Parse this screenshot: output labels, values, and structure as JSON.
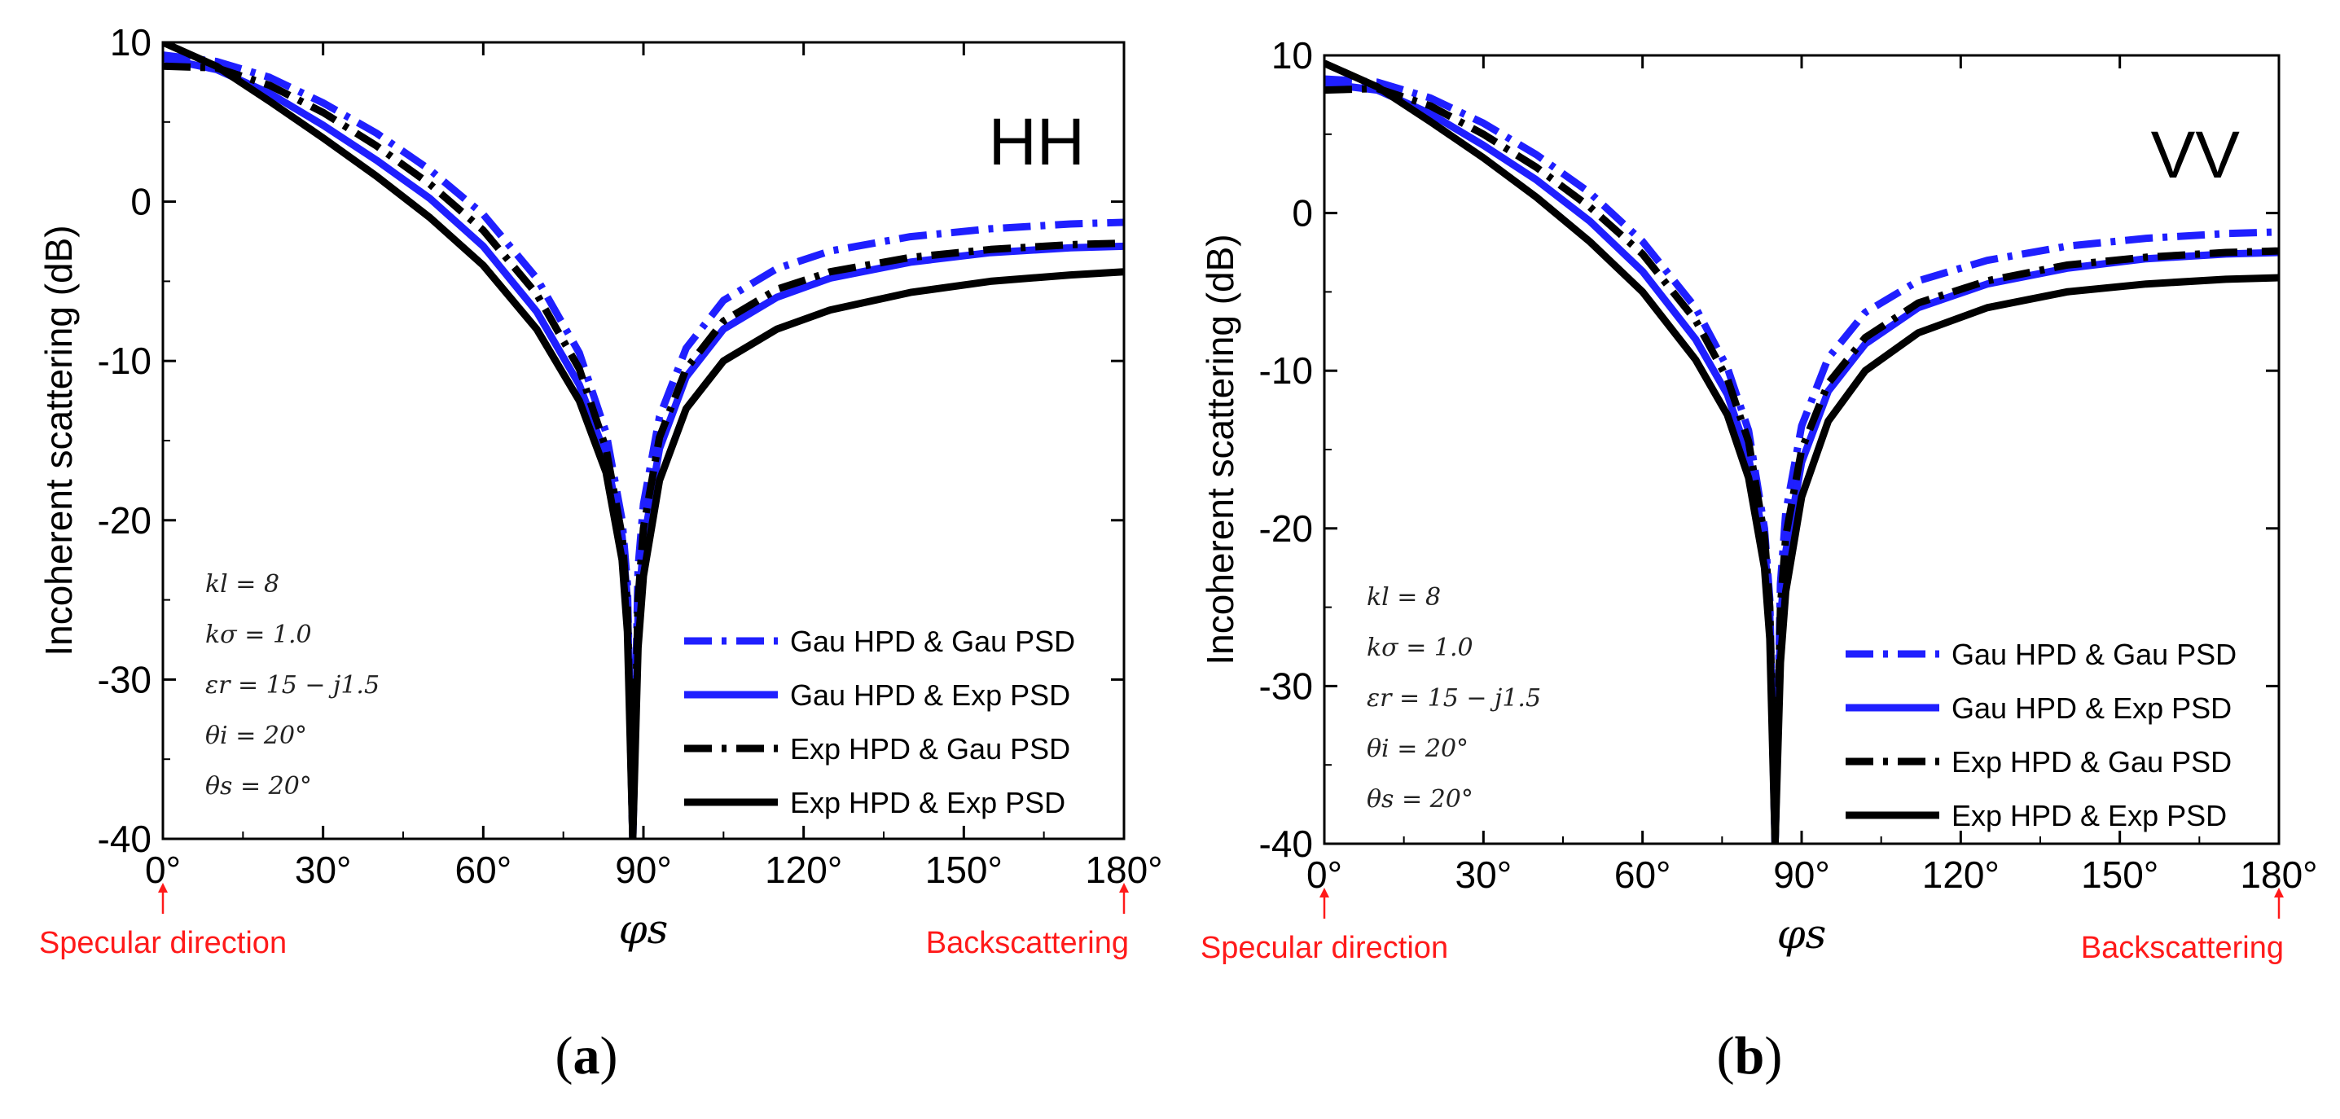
{
  "chart_data": [
    {
      "type": "line",
      "panel_tag": "HH",
      "caption_open": "(",
      "caption_letter": "a",
      "caption_close": ")",
      "ylabel": "Incoherent scattering (dB)",
      "xlabel": "φs",
      "xlim": [
        0,
        180
      ],
      "ylim": [
        -40,
        10
      ],
      "x_ticks": [
        "0°",
        "30°",
        "60°",
        "90°",
        "120°",
        "150°",
        "180°"
      ],
      "y_ticks": [
        "10",
        "0",
        "-10",
        "-20",
        "-30",
        "-40"
      ],
      "notch_deg": 88,
      "parameters": [
        "kl = 8",
        "kσ = 1.0",
        "εr = 15 − j1.5",
        "θi = 20°",
        "θs = 20°"
      ],
      "annotations": [
        {
          "text": "Specular direction",
          "x": 0
        },
        {
          "text": "Backscattering",
          "x": 180
        }
      ],
      "legend_location": "lower-right",
      "series": [
        {
          "name": "Gau HPD & Gau PSD",
          "color": "#1f1fff",
          "dash": "dashdot",
          "x": [
            0,
            10,
            20,
            30,
            40,
            50,
            60,
            70,
            78,
            83,
            86,
            87,
            88,
            89,
            90,
            93,
            98,
            105,
            115,
            125,
            140,
            155,
            170,
            180
          ],
          "y": [
            9.2,
            8.8,
            7.8,
            6.2,
            4.3,
            2.0,
            -0.8,
            -4.8,
            -9.5,
            -14.5,
            -20.0,
            -24.0,
            -40.0,
            -23.0,
            -19.0,
            -13.5,
            -9.2,
            -6.2,
            -4.2,
            -3.1,
            -2.2,
            -1.7,
            -1.4,
            -1.3
          ]
        },
        {
          "name": "Gau HPD & Exp PSD",
          "color": "#1f1fff",
          "dash": "solid",
          "x": [
            0,
            10,
            20,
            30,
            40,
            50,
            60,
            70,
            78,
            83,
            86,
            87,
            88,
            89,
            90,
            93,
            98,
            105,
            115,
            125,
            140,
            155,
            170,
            180
          ],
          "y": [
            9.0,
            8.3,
            6.8,
            4.8,
            2.6,
            0.2,
            -2.8,
            -6.9,
            -11.5,
            -16.0,
            -21.0,
            -25.0,
            -40.0,
            -26.0,
            -21.5,
            -15.5,
            -11.0,
            -8.0,
            -6.0,
            -4.8,
            -3.8,
            -3.2,
            -2.9,
            -2.8
          ]
        },
        {
          "name": "Exp HPD & Gau PSD",
          "color": "#000000",
          "dash": "dashdot",
          "x": [
            0,
            10,
            20,
            30,
            40,
            50,
            60,
            70,
            78,
            83,
            86,
            87,
            88,
            89,
            90,
            93,
            98,
            105,
            115,
            125,
            140,
            155,
            170,
            180
          ],
          "y": [
            8.5,
            8.4,
            7.3,
            5.6,
            3.5,
            1.1,
            -1.8,
            -5.8,
            -10.5,
            -15.5,
            -21.0,
            -25.5,
            -40.0,
            -25.0,
            -20.5,
            -14.8,
            -10.5,
            -7.5,
            -5.5,
            -4.4,
            -3.5,
            -3.0,
            -2.7,
            -2.6
          ]
        },
        {
          "name": "Exp HPD & Exp PSD",
          "color": "#000000",
          "dash": "solid",
          "x": [
            0,
            10,
            20,
            30,
            40,
            50,
            60,
            70,
            78,
            83,
            86,
            87,
            88,
            89,
            90,
            93,
            98,
            105,
            115,
            125,
            140,
            155,
            170,
            180
          ],
          "y": [
            10.0,
            8.5,
            6.3,
            4.0,
            1.6,
            -1.0,
            -4.0,
            -8.0,
            -12.5,
            -17.0,
            -22.5,
            -27.0,
            -40.0,
            -28.0,
            -23.5,
            -17.5,
            -13.0,
            -10.0,
            -8.0,
            -6.8,
            -5.7,
            -5.0,
            -4.6,
            -4.4
          ]
        }
      ]
    },
    {
      "type": "line",
      "panel_tag": "VV",
      "caption_open": "(",
      "caption_letter": "b",
      "caption_close": ")",
      "ylabel": "Incoherent scattering (dB)",
      "xlabel": "φs",
      "xlim": [
        0,
        180
      ],
      "ylim": [
        -40,
        10
      ],
      "x_ticks": [
        "0°",
        "30°",
        "60°",
        "90°",
        "120°",
        "150°",
        "180°"
      ],
      "y_ticks": [
        "10",
        "0",
        "-10",
        "-20",
        "-30",
        "-40"
      ],
      "notch_deg": 85,
      "parameters": [
        "kl = 8",
        "kσ = 1.0",
        "εr = 15 − j1.5",
        "θi = 20°",
        "θs = 20°"
      ],
      "annotations": [
        {
          "text": "Specular direction",
          "x": 0
        },
        {
          "text": "Backscattering",
          "x": 180
        }
      ],
      "legend_location": "lower-right",
      "series": [
        {
          "name": "Gau HPD & Gau PSD",
          "color": "#1f1fff",
          "dash": "dashdot",
          "x": [
            0,
            10,
            20,
            30,
            40,
            50,
            60,
            70,
            76,
            80,
            83,
            84,
            85,
            86,
            87,
            90,
            95,
            102,
            112,
            125,
            140,
            155,
            170,
            180
          ],
          "y": [
            8.5,
            8.3,
            7.3,
            5.7,
            3.7,
            1.3,
            -1.8,
            -6.0,
            -9.8,
            -13.8,
            -20.0,
            -24.5,
            -40.0,
            -23.5,
            -19.0,
            -13.5,
            -9.2,
            -6.3,
            -4.3,
            -3.0,
            -2.1,
            -1.6,
            -1.3,
            -1.2
          ]
        },
        {
          "name": "Gau HPD & Exp PSD",
          "color": "#1f1fff",
          "dash": "solid",
          "x": [
            0,
            10,
            20,
            30,
            40,
            50,
            60,
            70,
            76,
            80,
            83,
            84,
            85,
            86,
            87,
            90,
            95,
            102,
            112,
            125,
            140,
            155,
            170,
            180
          ],
          "y": [
            8.2,
            7.8,
            6.3,
            4.3,
            2.1,
            -0.5,
            -3.7,
            -8.0,
            -11.5,
            -15.5,
            -21.0,
            -25.5,
            -40.0,
            -26.0,
            -21.5,
            -15.8,
            -11.3,
            -8.3,
            -6.0,
            -4.5,
            -3.5,
            -2.9,
            -2.6,
            -2.5
          ]
        },
        {
          "name": "Exp HPD & Gau PSD",
          "color": "#000000",
          "dash": "dashdot",
          "x": [
            0,
            10,
            20,
            30,
            40,
            50,
            60,
            70,
            76,
            80,
            83,
            84,
            85,
            86,
            87,
            90,
            95,
            102,
            112,
            125,
            140,
            155,
            170,
            180
          ],
          "y": [
            7.8,
            7.9,
            6.8,
            5.0,
            2.9,
            0.4,
            -2.6,
            -6.8,
            -10.5,
            -14.5,
            -20.5,
            -25.0,
            -40.0,
            -25.0,
            -20.5,
            -15.0,
            -10.8,
            -7.9,
            -5.7,
            -4.3,
            -3.3,
            -2.8,
            -2.5,
            -2.4
          ]
        },
        {
          "name": "Exp HPD & Exp PSD",
          "color": "#000000",
          "dash": "solid",
          "x": [
            0,
            10,
            20,
            30,
            40,
            50,
            60,
            70,
            76,
            80,
            83,
            84,
            85,
            86,
            87,
            90,
            95,
            102,
            112,
            125,
            140,
            155,
            170,
            180
          ],
          "y": [
            9.5,
            8.0,
            5.8,
            3.5,
            1.0,
            -1.8,
            -5.0,
            -9.3,
            -12.8,
            -16.8,
            -22.5,
            -27.0,
            -40.0,
            -28.5,
            -24.0,
            -18.0,
            -13.2,
            -10.0,
            -7.6,
            -6.0,
            -5.0,
            -4.5,
            -4.2,
            -4.1
          ]
        }
      ]
    }
  ]
}
